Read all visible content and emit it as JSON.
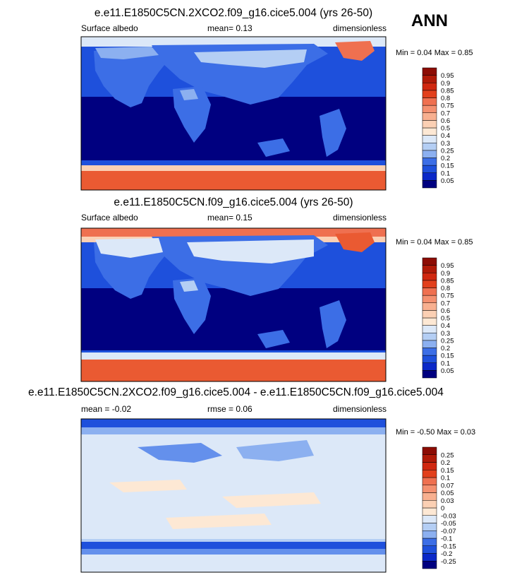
{
  "season": "ANN",
  "colors": {
    "albedo": [
      "#000080",
      "#0a28c8",
      "#1e50dc",
      "#3c6ee6",
      "#6490ec",
      "#8cb0f0",
      "#b4cef4",
      "#dce8f8",
      "#fde8d4",
      "#fbd0b4",
      "#f8b090",
      "#f49070",
      "#ef7050",
      "#ea5a32",
      "#e2401c",
      "#d02810",
      "#b01a08",
      "#8c0c04"
    ],
    "diff": [
      "#000080",
      "#0a28c8",
      "#1e50dc",
      "#3c6ee6",
      "#6490ec",
      "#8cb0f0",
      "#b4cef4",
      "#dce8f8",
      "#fde8d4",
      "#fbd0b4",
      "#f8b090",
      "#f49070",
      "#ef7050",
      "#ea5a32",
      "#e2401c",
      "#d02810",
      "#b01a08",
      "#8c0c04"
    ]
  },
  "panels": [
    {
      "title": "e.e11.E1850C5CN.2XCO2.f09_g16.cice5.004 (yrs 26-50)",
      "left_label": "Surface albedo",
      "center_label": "mean=   0.13",
      "right_label": "dimensionless",
      "minmax": "Min =   0.04 Max =   0.85"
    },
    {
      "title": "e.e11.E1850C5CN.f09_g16.cice5.004 (yrs 26-50)",
      "left_label": "Surface albedo",
      "center_label": "mean=   0.15",
      "right_label": "dimensionless",
      "minmax": "Min =   0.04 Max =   0.85"
    },
    {
      "title": "e.e11.E1850C5CN.2XCO2.f09_g16.cice5.004 - e.e11.E1850C5CN.f09_g16.cice5.004",
      "left_label": "mean =  -0.02",
      "center_label": "rmse =   0.06",
      "right_label": "dimensionless",
      "minmax": "Min =  -0.50 Max =   0.03"
    }
  ],
  "chart_data": [
    {
      "type": "heatmap",
      "title": "e.e11.E1850C5CN.2XCO2.f09_g16.cice5.004 (yrs 26-50)",
      "variable": "Surface albedo",
      "units": "dimensionless",
      "mean": 0.13,
      "min": 0.04,
      "max": 0.85,
      "colorbar_levels": [
        "0.05",
        "0.1",
        "0.15",
        "0.2",
        "0.25",
        "0.3",
        "0.4",
        "0.5",
        "0.6",
        "0.7",
        "0.75",
        "0.8",
        "0.85",
        "0.9",
        "0.95"
      ]
    },
    {
      "type": "heatmap",
      "title": "e.e11.E1850C5CN.f09_g16.cice5.004 (yrs 26-50)",
      "variable": "Surface albedo",
      "units": "dimensionless",
      "mean": 0.15,
      "min": 0.04,
      "max": 0.85,
      "colorbar_levels": [
        "0.05",
        "0.1",
        "0.15",
        "0.2",
        "0.25",
        "0.3",
        "0.4",
        "0.5",
        "0.6",
        "0.7",
        "0.75",
        "0.8",
        "0.85",
        "0.9",
        "0.95"
      ]
    },
    {
      "type": "heatmap",
      "title": "e.e11.E1850C5CN.2XCO2.f09_g16.cice5.004 - e.e11.E1850C5CN.f09_g16.cice5.004",
      "units": "dimensionless",
      "mean": -0.02,
      "rmse": 0.06,
      "min": -0.5,
      "max": 0.03,
      "colorbar_levels": [
        "-0.25",
        "-0.2",
        "-0.15",
        "-0.1",
        "-0.07",
        "-0.05",
        "-0.03",
        "0",
        "0.03",
        "0.05",
        "0.07",
        "0.1",
        "0.15",
        "0.2",
        "0.25"
      ]
    }
  ]
}
